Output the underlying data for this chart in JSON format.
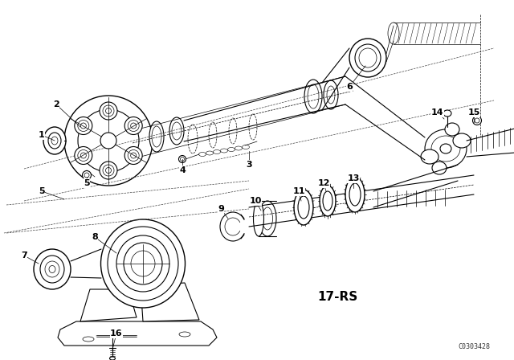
{
  "bg_color": "#ffffff",
  "line_color": "#000000",
  "label_17rs": "17-RS",
  "watermark": "C0303428",
  "fig_width": 6.4,
  "fig_height": 4.48,
  "dpi": 100,
  "label_fs": 8,
  "rs_fs": 11,
  "wm_fs": 6,
  "thin": 0.5,
  "med": 0.8,
  "thick": 1.0,
  "dash": [
    4,
    3
  ]
}
